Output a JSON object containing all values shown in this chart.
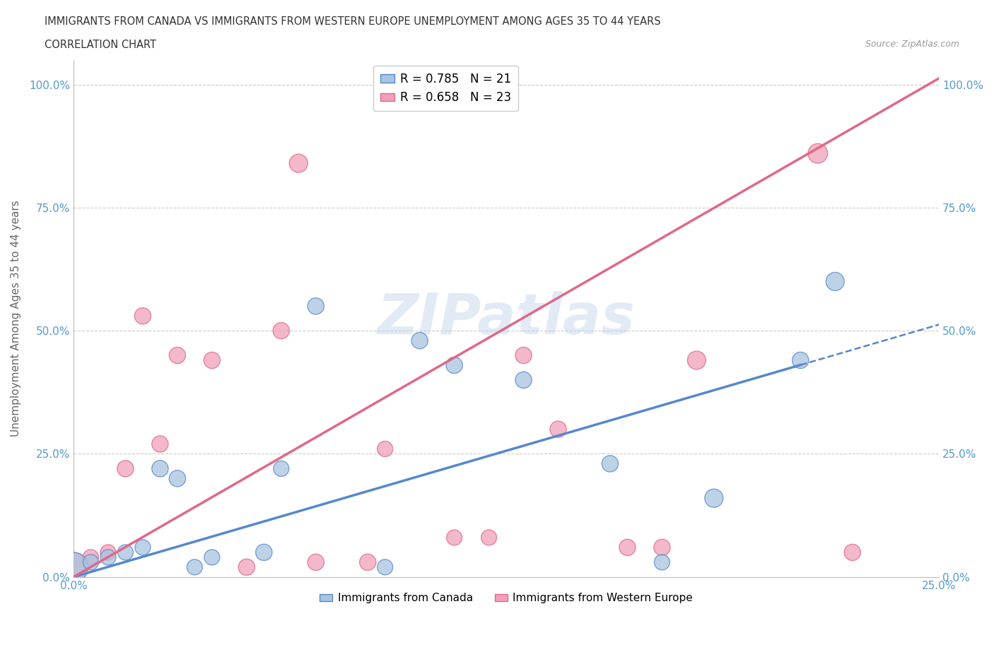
{
  "title_line1": "IMMIGRANTS FROM CANADA VS IMMIGRANTS FROM WESTERN EUROPE UNEMPLOYMENT AMONG AGES 35 TO 44 YEARS",
  "title_line2": "CORRELATION CHART",
  "source_text": "Source: ZipAtlas.com",
  "ylabel": "Unemployment Among Ages 35 to 44 years",
  "xlim": [
    0.0,
    0.25
  ],
  "ylim": [
    0.0,
    1.05
  ],
  "ytick_labels": [
    "0.0%",
    "25.0%",
    "50.0%",
    "75.0%",
    "100.0%"
  ],
  "ytick_values": [
    0.0,
    0.25,
    0.5,
    0.75,
    1.0
  ],
  "xtick_labels": [
    "0.0%",
    "25.0%"
  ],
  "xtick_values": [
    0.0,
    0.25
  ],
  "canada_R": 0.785,
  "canada_N": 21,
  "europe_R": 0.658,
  "europe_N": 23,
  "canada_color": "#a8c4e0",
  "europe_color": "#f0a0b8",
  "canada_line_color": "#5588cc",
  "europe_line_color": "#e06888",
  "canada_scatter_x": [
    0.0,
    0.005,
    0.01,
    0.015,
    0.02,
    0.025,
    0.03,
    0.035,
    0.04,
    0.055,
    0.06,
    0.07,
    0.09,
    0.1,
    0.11,
    0.13,
    0.155,
    0.17,
    0.185,
    0.21,
    0.22
  ],
  "canada_scatter_y": [
    0.02,
    0.03,
    0.04,
    0.05,
    0.06,
    0.22,
    0.2,
    0.02,
    0.04,
    0.05,
    0.22,
    0.55,
    0.02,
    0.48,
    0.43,
    0.4,
    0.23,
    0.03,
    0.16,
    0.44,
    0.6
  ],
  "canada_scatter_size": [
    900,
    250,
    250,
    250,
    250,
    280,
    280,
    250,
    250,
    280,
    250,
    280,
    250,
    280,
    280,
    280,
    280,
    250,
    350,
    280,
    350
  ],
  "europe_scatter_x": [
    0.0,
    0.005,
    0.01,
    0.015,
    0.02,
    0.025,
    0.03,
    0.04,
    0.05,
    0.06,
    0.065,
    0.07,
    0.085,
    0.09,
    0.11,
    0.12,
    0.13,
    0.14,
    0.16,
    0.17,
    0.18,
    0.215,
    0.225
  ],
  "europe_scatter_y": [
    0.02,
    0.04,
    0.05,
    0.22,
    0.53,
    0.27,
    0.45,
    0.44,
    0.02,
    0.5,
    0.84,
    0.03,
    0.03,
    0.26,
    0.08,
    0.08,
    0.45,
    0.3,
    0.06,
    0.06,
    0.44,
    0.86,
    0.05
  ],
  "europe_scatter_size": [
    900,
    250,
    250,
    280,
    280,
    280,
    280,
    280,
    280,
    280,
    350,
    280,
    280,
    250,
    250,
    250,
    280,
    280,
    280,
    280,
    350,
    400,
    280
  ],
  "canada_trend_intercept": 0.0,
  "canada_trend_slope": 2.05,
  "europe_trend_intercept": 0.0,
  "europe_trend_slope": 4.05,
  "canada_dash_split": 0.21,
  "europe_dash_split": 0.25,
  "watermark_text": "ZIPatlas",
  "background_color": "#ffffff",
  "grid_color": "#cccccc",
  "ytick_color": "#5599cc",
  "xtick_color": "#5599cc",
  "legend_canada_label": "Immigrants from Canada",
  "legend_europe_label": "Immigrants from Western Europe"
}
